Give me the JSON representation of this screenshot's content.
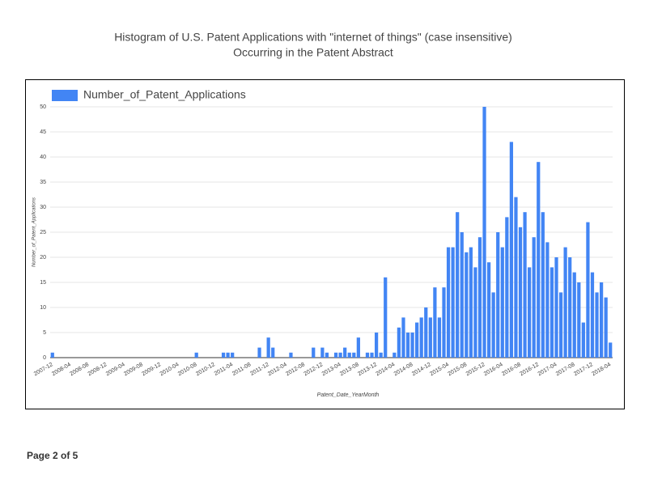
{
  "page_label": "Page 2 of 5",
  "chart_data": {
    "type": "bar",
    "title": "Histogram of U.S. Patent Applications with \"internet of things\" (case insensitive)",
    "subtitle": "Occurring in the Patent Abstract",
    "x_label": "Patent_Date_YearMonth",
    "y_label": "Number_of_Patent_Applications",
    "categories": [
      "2007-12",
      null,
      null,
      null,
      "2008-04",
      null,
      null,
      null,
      "2008-08",
      null,
      null,
      null,
      "2008-12",
      null,
      null,
      null,
      "2009-04",
      null,
      null,
      null,
      "2009-08",
      null,
      null,
      null,
      "2009-12",
      null,
      null,
      null,
      "2010-04",
      null,
      null,
      null,
      "2010-08",
      null,
      null,
      null,
      "2010-12",
      null,
      null,
      null,
      "2011-04",
      null,
      null,
      null,
      "2011-08",
      null,
      null,
      null,
      "2011-12",
      null,
      null,
      null,
      "2012-04",
      null,
      null,
      null,
      "2012-08",
      null,
      null,
      null,
      "2012-12",
      null,
      null,
      null,
      "2013-04",
      null,
      null,
      null,
      "2013-08",
      null,
      null,
      null,
      "2013-12",
      null,
      null,
      null,
      "2014-04",
      null,
      null,
      null,
      "2014-08",
      null,
      null,
      null,
      "2014-12",
      null,
      null,
      null,
      "2015-04",
      null,
      null,
      null,
      "2015-08",
      null,
      null,
      null,
      "2015-12",
      null,
      null,
      null,
      "2016-04",
      null,
      null,
      null,
      "2016-08",
      null,
      null,
      null,
      "2016-12",
      null,
      null,
      null,
      "2017-04",
      null,
      null,
      null,
      "2017-08",
      null,
      null,
      null,
      "2017-12",
      null,
      null,
      null,
      "2018-04"
    ],
    "series": [
      {
        "name": "Number_of_Patent_Applications",
        "color": "#4285f4",
        "values": [
          1,
          0,
          0,
          0,
          0,
          0,
          0,
          0,
          0,
          0,
          0,
          0,
          0,
          0,
          0,
          0,
          0,
          0,
          0,
          0,
          0,
          0,
          0,
          0,
          0,
          0,
          0,
          0,
          0,
          0,
          0,
          0,
          1,
          0,
          0,
          0,
          0,
          0,
          1,
          1,
          1,
          0,
          0,
          0,
          0,
          0,
          2,
          0,
          4,
          2,
          0,
          0,
          0,
          1,
          0,
          0,
          0,
          0,
          2,
          0,
          2,
          1,
          0,
          1,
          1,
          2,
          1,
          1,
          4,
          0,
          1,
          1,
          5,
          1,
          16,
          0,
          1,
          6,
          8,
          5,
          5,
          7,
          8,
          10,
          8,
          14,
          8,
          14,
          22,
          22,
          29,
          25,
          21,
          22,
          18,
          24,
          50,
          19,
          13,
          25,
          22,
          28,
          43,
          32,
          26,
          29,
          18,
          24,
          39,
          29,
          23,
          18,
          20,
          13,
          22,
          20,
          17,
          15,
          7,
          27,
          17,
          13,
          15,
          12,
          3
        ]
      }
    ],
    "ylim": [
      0,
      50
    ],
    "yticks": [
      0,
      5,
      10,
      15,
      20,
      25,
      30,
      35,
      40,
      45,
      50
    ],
    "grid": true,
    "legend": "top-left"
  }
}
